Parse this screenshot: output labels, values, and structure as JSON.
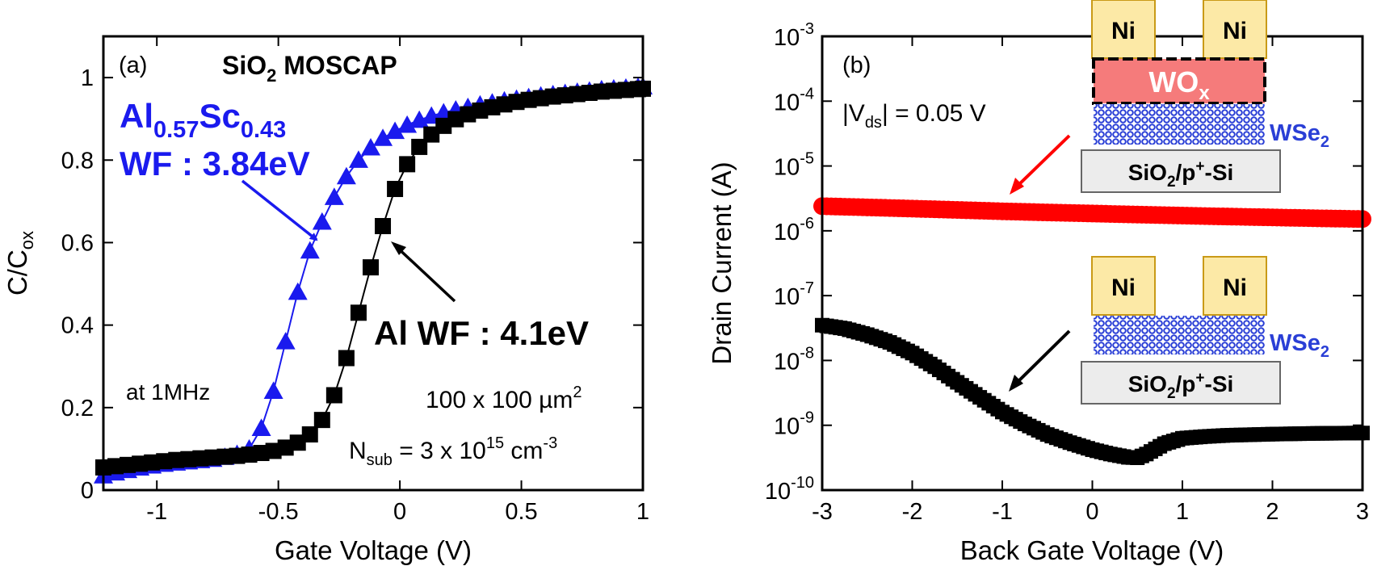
{
  "colors": {
    "blue": "#1a1aee",
    "black": "#000000",
    "red": "#ff0000",
    "ni_fill": "#fce9a6",
    "ni_stroke": "#c99a17",
    "wox_fill": "#f57b7b",
    "wse2": "#2a3fd6",
    "substrate_fill": "#ececec"
  },
  "panel_a": {
    "label": "(a)",
    "title": {
      "main": "SiO",
      "sub": "2",
      "rest": " MOSCAP"
    },
    "ylabel": {
      "main": "C/C",
      "sub": "ox"
    },
    "xlabel": "Gate Voltage (V)",
    "annotations": {
      "blue_line1": {
        "a": "Al",
        "b": "0.57",
        "c": "Sc",
        "d": "0.43"
      },
      "blue_line2": "WF : 3.84eV",
      "black": "Al WF : 4.1eV",
      "freq": "at 1MHz",
      "area": {
        "text": "100 x 100 µm",
        "sup": "2"
      },
      "nsub": {
        "a": "N",
        "b": "sub",
        "c": " = 3 x 10",
        "d": "15",
        "e": " cm",
        "f": "-3"
      }
    }
  },
  "panel_b": {
    "label": "(b)",
    "ylabel": "Drain Current (A)",
    "xlabel": "Back Gate Voltage (V)",
    "vds": {
      "pre": "|V",
      "sub": "ds",
      "post": "| = 0.05 V"
    },
    "top_stack": {
      "ni": "Ni",
      "wox": "WO",
      "wox_sub": "x",
      "wse2": "WSe",
      "wse2_sub": "2",
      "substrate": "SiO",
      "sub_sub": "2",
      "substrate_rest": "/p",
      "substrate_sup": "+",
      "substrate_end": "-Si"
    },
    "bottom_stack": {
      "ni": "Ni",
      "wse2": "WSe",
      "wse2_sub": "2",
      "substrate": "SiO",
      "sub_sub": "2",
      "substrate_rest": "/p",
      "substrate_sup": "+",
      "substrate_end": "-Si"
    }
  },
  "chart_data": [
    {
      "type": "line",
      "title": "SiO2 MOSCAP",
      "xlabel": "Gate Voltage (V)",
      "ylabel": "C/Cox",
      "xlim": [
        -1.22,
        1.0
      ],
      "ylim": [
        0,
        1.1
      ],
      "xticks": [
        -1,
        -0.5,
        0,
        0.5,
        1
      ],
      "yticks": [
        0,
        0.2,
        0.4,
        0.6,
        0.8,
        1
      ],
      "xtick_labels": [
        "-1",
        "-0.5",
        "0",
        "0.5",
        "1"
      ],
      "ytick_labels": [
        "0",
        "0.2",
        "0.4",
        "0.6",
        "0.8",
        "1"
      ],
      "series": [
        {
          "name": "Al0.57Sc0.43",
          "color": "#1a1aee",
          "marker": "triangle",
          "x": [
            -1.22,
            -1.17,
            -1.12,
            -1.07,
            -1.02,
            -0.97,
            -0.92,
            -0.87,
            -0.82,
            -0.77,
            -0.72,
            -0.67,
            -0.62,
            -0.57,
            -0.52,
            -0.47,
            -0.42,
            -0.37,
            -0.32,
            -0.27,
            -0.22,
            -0.17,
            -0.12,
            -0.07,
            -0.02,
            0.03,
            0.08,
            0.13,
            0.18,
            0.23,
            0.28,
            0.33,
            0.38,
            0.43,
            0.48,
            0.53,
            0.58,
            0.63,
            0.68,
            0.73,
            0.78,
            0.83,
            0.88,
            0.93,
            0.98,
            1.0
          ],
          "y": [
            0.035,
            0.042,
            0.048,
            0.054,
            0.059,
            0.063,
            0.066,
            0.069,
            0.072,
            0.075,
            0.08,
            0.087,
            0.1,
            0.15,
            0.24,
            0.36,
            0.48,
            0.58,
            0.65,
            0.71,
            0.76,
            0.8,
            0.83,
            0.853,
            0.87,
            0.885,
            0.897,
            0.907,
            0.915,
            0.922,
            0.928,
            0.934,
            0.939,
            0.944,
            0.948,
            0.952,
            0.956,
            0.959,
            0.962,
            0.965,
            0.968,
            0.971,
            0.973,
            0.975,
            0.977,
            0.978
          ]
        },
        {
          "name": "Al",
          "color": "#000000",
          "marker": "square",
          "x": [
            -1.22,
            -1.17,
            -1.12,
            -1.07,
            -1.02,
            -0.97,
            -0.92,
            -0.87,
            -0.82,
            -0.77,
            -0.72,
            -0.67,
            -0.62,
            -0.57,
            -0.52,
            -0.47,
            -0.42,
            -0.37,
            -0.32,
            -0.27,
            -0.22,
            -0.17,
            -0.12,
            -0.07,
            -0.02,
            0.03,
            0.08,
            0.13,
            0.18,
            0.23,
            0.28,
            0.33,
            0.38,
            0.43,
            0.48,
            0.53,
            0.58,
            0.63,
            0.68,
            0.73,
            0.78,
            0.83,
            0.88,
            0.93,
            0.98,
            1.0
          ],
          "y": [
            0.055,
            0.058,
            0.061,
            0.064,
            0.067,
            0.07,
            0.073,
            0.075,
            0.077,
            0.079,
            0.081,
            0.083,
            0.086,
            0.09,
            0.095,
            0.103,
            0.115,
            0.135,
            0.17,
            0.23,
            0.32,
            0.43,
            0.54,
            0.64,
            0.73,
            0.79,
            0.832,
            0.862,
            0.883,
            0.899,
            0.911,
            0.92,
            0.928,
            0.935,
            0.941,
            0.946,
            0.95,
            0.954,
            0.957,
            0.96,
            0.963,
            0.966,
            0.968,
            0.97,
            0.972,
            0.973
          ]
        }
      ]
    },
    {
      "type": "scatter",
      "xlabel": "Back Gate Voltage (V)",
      "ylabel": "Drain Current (A)",
      "yscale": "log",
      "xlim": [
        -3,
        3
      ],
      "ylim": [
        1e-10,
        0.001
      ],
      "xticks": [
        -3,
        -2,
        -1,
        0,
        1,
        2,
        3
      ],
      "xtick_labels": [
        "-3",
        "-2",
        "-1",
        "0",
        "1",
        "2",
        "3"
      ],
      "ytick_labels": [
        {
          "base": "10",
          "exp": "-10"
        },
        {
          "base": "10",
          "exp": "-9"
        },
        {
          "base": "10",
          "exp": "-8"
        },
        {
          "base": "10",
          "exp": "-7"
        },
        {
          "base": "10",
          "exp": "-6"
        },
        {
          "base": "10",
          "exp": "-5"
        },
        {
          "base": "10",
          "exp": "-4"
        },
        {
          "base": "10",
          "exp": "-3"
        }
      ],
      "series": [
        {
          "name": "WOx/WSe2",
          "color": "#ff0000",
          "marker": "circle",
          "x": [
            -3,
            -2.5,
            -2,
            -1.5,
            -1,
            -0.5,
            0,
            0.5,
            1,
            1.5,
            2,
            2.5,
            3
          ],
          "y": [
            2.4e-06,
            2.3e-06,
            2.2e-06,
            2.1e-06,
            2e-06,
            1.92e-06,
            1.85e-06,
            1.78e-06,
            1.72e-06,
            1.66e-06,
            1.61e-06,
            1.56e-06,
            1.52e-06
          ]
        },
        {
          "name": "WSe2",
          "color": "#000000",
          "marker": "square",
          "x": [
            -3,
            -2.75,
            -2.5,
            -2.25,
            -2,
            -1.75,
            -1.5,
            -1.25,
            -1,
            -0.75,
            -0.5,
            -0.25,
            0,
            0.2,
            0.4,
            0.5,
            0.6,
            0.8,
            1,
            1.25,
            1.5,
            2,
            2.5,
            3
          ],
          "y": [
            3.5e-08,
            3.1e-08,
            2.5e-08,
            1.9e-08,
            1.3e-08,
            8e-09,
            4.6e-09,
            2.7e-09,
            1.6e-09,
            1.05e-09,
            7.2e-10,
            5.4e-10,
            4.2e-10,
            3.6e-10,
            3.2e-10,
            3.15e-10,
            3.6e-10,
            5.2e-10,
            6.3e-10,
            6.7e-10,
            7e-10,
            7.3e-10,
            7.5e-10,
            7.6e-10
          ]
        }
      ]
    }
  ]
}
